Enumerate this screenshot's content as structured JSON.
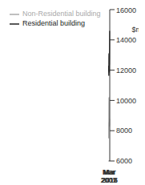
{
  "chart_data": {
    "type": "line",
    "y_label": "$m",
    "categories": [
      "Mar 2007",
      null,
      null,
      null,
      null,
      null,
      null,
      null,
      "Mar 2009",
      null,
      null,
      null,
      null,
      null,
      null,
      null,
      "Mar 2011",
      null,
      null,
      null,
      null,
      null,
      null,
      null,
      "Mar 2013",
      null,
      null,
      null,
      null,
      null,
      null,
      null,
      "Mar 2015"
    ],
    "series": [
      {
        "name": "Residential building",
        "color": "#222222",
        "values": [
          12000,
          11900,
          11950,
          12100,
          12300,
          12250,
          11900,
          11650,
          11700,
          12200,
          12700,
          13100,
          13000,
          12800,
          12600,
          12300,
          12100,
          11900,
          11850,
          12000,
          12200,
          12300,
          12300,
          12300,
          12400,
          12600,
          12900,
          13200,
          13400,
          13700,
          14000,
          14300,
          14600
        ]
      },
      {
        "name": "Non-Residential building",
        "color": "#aaaaaa",
        "values": [
          7500,
          7700,
          7900,
          8100,
          8200,
          8400,
          8600,
          8500,
          8100,
          8500,
          9400,
          10200,
          10100,
          9500,
          8800,
          8700,
          8700,
          8800,
          8700,
          8600,
          8400,
          8300,
          8300,
          8400,
          8600,
          8700,
          8800,
          8800,
          8800,
          8800,
          8800,
          8800,
          8800
        ]
      }
    ],
    "ylim": [
      6000,
      16000
    ],
    "yticks": [
      6000,
      8000,
      10000,
      12000,
      14000,
      16000
    ],
    "grid": false,
    "legend": "top-left"
  }
}
